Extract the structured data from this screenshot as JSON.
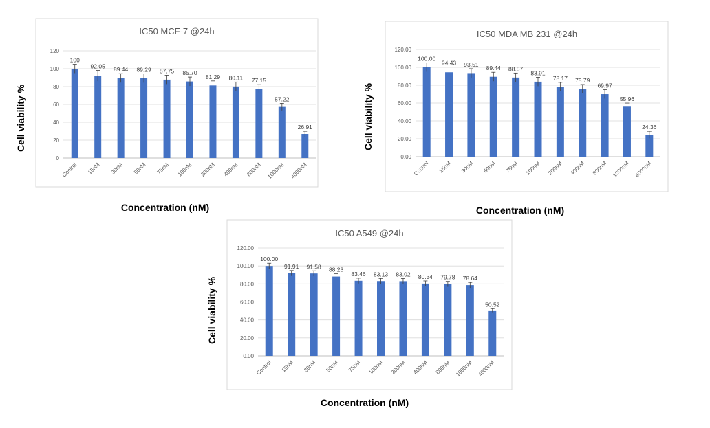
{
  "chart_data": [
    {
      "type": "bar",
      "title": "IC50 MCF-7 @24h",
      "xlabel": "Concentration (nM)",
      "ylabel": "Cell viability %",
      "categories": [
        "Control",
        "15nM",
        "30nM",
        "50nM",
        "75nM",
        "100nM",
        "200nM",
        "400nM",
        "800nM",
        "1000nM",
        "4000nM"
      ],
      "values": [
        100,
        92.05,
        89.44,
        89.29,
        87.75,
        85.7,
        81.29,
        80.11,
        77.15,
        57.22,
        26.91
      ],
      "data_labels": [
        "100",
        "92.05",
        "89.44",
        "89.29",
        "87.75",
        "85.70",
        "81.29",
        "80.11",
        "77.15",
        "57.22",
        "26.91"
      ],
      "errors": [
        5,
        6,
        5,
        5,
        5,
        5,
        5,
        5,
        5,
        4,
        3
      ],
      "yticks": [
        "0",
        "20",
        "40",
        "60",
        "80",
        "100",
        "120"
      ],
      "ylim": [
        0,
        120
      ],
      "grid": true,
      "color": "#4472C4"
    },
    {
      "type": "bar",
      "title": "IC50 MDA MB 231 @24h",
      "xlabel": "Concentration (nM)",
      "ylabel": "Cell viability %",
      "categories": [
        "Control",
        "15nM",
        "30nM",
        "50nM",
        "75nM",
        "100nM",
        "200nM",
        "400nM",
        "800nM",
        "1000nM",
        "4000nM"
      ],
      "values": [
        100.0,
        94.43,
        93.51,
        89.44,
        88.57,
        83.91,
        78.17,
        75.79,
        69.97,
        55.96,
        24.36
      ],
      "data_labels": [
        "100.00",
        "94.43",
        "93.51",
        "89.44",
        "88.57",
        "83.91",
        "78.17",
        "75.79",
        "69.97",
        "55.96",
        "24.36"
      ],
      "errors": [
        5,
        6,
        5,
        5,
        5,
        5,
        5,
        5,
        5,
        4,
        4
      ],
      "yticks": [
        "0.00",
        "20.00",
        "40.00",
        "60.00",
        "80.00",
        "100.00",
        "120.00"
      ],
      "ylim": [
        0,
        120
      ],
      "grid": true,
      "color": "#4472C4"
    },
    {
      "type": "bar",
      "title": "IC50 A549 @24h",
      "xlabel": "Concentration (nM)",
      "ylabel": "Cell viability %",
      "categories": [
        "Control",
        "15nM",
        "30nM",
        "50nM",
        "75nM",
        "100nM",
        "200nM",
        "400nM",
        "800nM",
        "1000nM",
        "4000nM"
      ],
      "values": [
        100.0,
        91.91,
        91.58,
        88.23,
        83.46,
        83.13,
        83.02,
        80.34,
        79.78,
        78.64,
        50.52
      ],
      "data_labels": [
        "100.00",
        "91.91",
        "91.58",
        "88.23",
        "83.46",
        "83.13",
        "83.02",
        "80.34",
        "79.78",
        "78.64",
        "50.52"
      ],
      "errors": [
        3,
        3,
        3,
        3,
        3,
        3,
        3,
        3,
        3,
        3,
        2
      ],
      "yticks": [
        "0.00",
        "20.00",
        "40.00",
        "60.00",
        "80.00",
        "100.00",
        "120.00"
      ],
      "ylim": [
        0,
        120
      ],
      "grid": true,
      "color": "#4472C4"
    }
  ]
}
